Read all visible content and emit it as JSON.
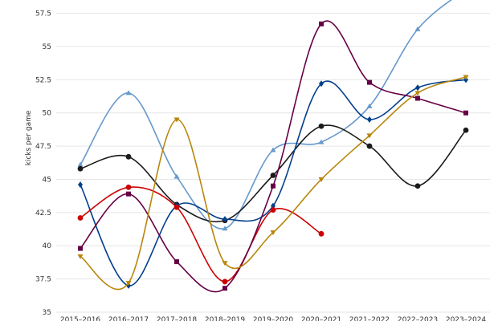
{
  "chart_data": {
    "type": "line",
    "title": "",
    "xlabel": "",
    "ylabel": "kicks per game",
    "ylim": [
      35,
      58.5
    ],
    "yticks": [
      35,
      37.5,
      40,
      42.5,
      45,
      47.5,
      50,
      52.5,
      55,
      57.5
    ],
    "ytick_labels": [
      "35",
      "37.5",
      "40",
      "42.5",
      "45",
      "47.5",
      "50",
      "52.5",
      "55",
      "57.5"
    ],
    "categories": [
      "2015–2016",
      "2016–2017",
      "2017–2018",
      "2018–2019",
      "2019–2020",
      "2020–2021",
      "2021–2022",
      "2022–2023",
      "2023–2024"
    ],
    "grid": true,
    "legend": "none",
    "series": [
      {
        "color": "#6699cc",
        "marker": "triangle-up",
        "values": [
          46.1,
          51.5,
          45.2,
          41.3,
          47.2,
          47.8,
          50.5,
          56.3,
          59.3
        ]
      },
      {
        "color": "#1a1a1a",
        "marker": "circle",
        "values": [
          45.8,
          46.7,
          43.1,
          41.9,
          45.3,
          49.0,
          47.5,
          44.5,
          48.7
        ]
      },
      {
        "color": "#003f8c",
        "marker": "diamond",
        "values": [
          44.6,
          37.0,
          43.0,
          42.0,
          43.0,
          52.2,
          49.5,
          51.9,
          52.5
        ]
      },
      {
        "color": "#cc0000",
        "marker": "circle",
        "values": [
          42.1,
          44.4,
          42.9,
          37.3,
          42.7,
          40.9,
          null,
          null,
          null
        ]
      },
      {
        "color": "#660044",
        "marker": "square",
        "values": [
          39.8,
          43.9,
          38.8,
          36.8,
          44.5,
          56.7,
          52.3,
          51.1,
          50.0
        ]
      },
      {
        "color": "#b8860b",
        "marker": "triangle-down",
        "values": [
          39.2,
          37.2,
          49.5,
          38.7,
          41.0,
          45.0,
          48.3,
          51.5,
          52.7
        ]
      }
    ]
  }
}
